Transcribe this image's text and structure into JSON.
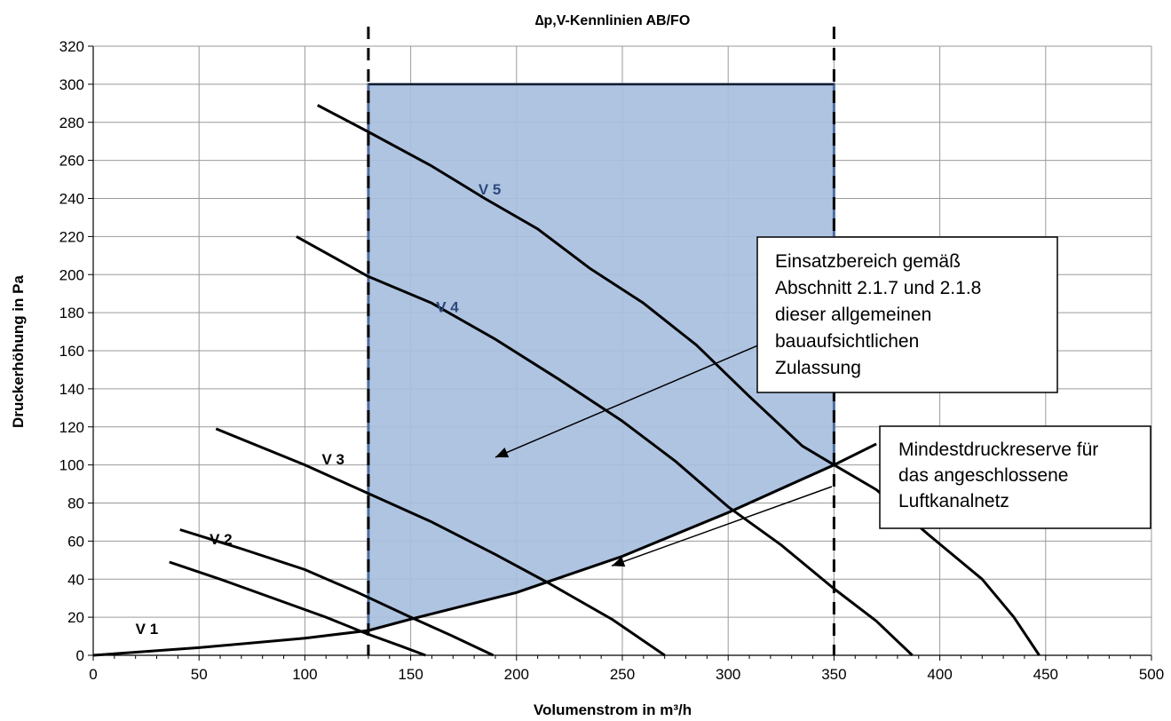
{
  "chart_data": {
    "type": "line",
    "title": "∆p,V-Kennlinien AB/FO",
    "xlabel": "Volumenstrom in m³/h",
    "ylabel": "Druckerhöhung in Pa",
    "xlim": [
      0,
      500
    ],
    "ylim": [
      0,
      320
    ],
    "x_ticks": [
      "0",
      "50",
      "100",
      "150",
      "200",
      "250",
      "300",
      "350",
      "400",
      "450",
      "500"
    ],
    "y_ticks": [
      "0",
      "20",
      "40",
      "60",
      "80",
      "100",
      "120",
      "140",
      "160",
      "180",
      "200",
      "220",
      "240",
      "260",
      "280",
      "300",
      "320"
    ],
    "grid": true,
    "series": [
      {
        "name": "V 1",
        "label_at": [
          20,
          14
        ],
        "label_color": "#000000",
        "points": [
          [
            36,
            49
          ],
          [
            60,
            40
          ],
          [
            90,
            28
          ],
          [
            110,
            20
          ],
          [
            130,
            11
          ],
          [
            145,
            5
          ],
          [
            157,
            0
          ]
        ]
      },
      {
        "name": "V 2",
        "label_at": [
          55,
          61
        ],
        "label_color": "#000000",
        "points": [
          [
            41,
            66
          ],
          [
            70,
            56
          ],
          [
            100,
            45
          ],
          [
            125,
            33
          ],
          [
            150,
            20
          ],
          [
            170,
            10
          ],
          [
            189,
            0
          ]
        ]
      },
      {
        "name": "V 3",
        "label_at": [
          108,
          103
        ],
        "label_color": "#000000",
        "points": [
          [
            58,
            119
          ],
          [
            100,
            100
          ],
          [
            130,
            85
          ],
          [
            160,
            70
          ],
          [
            190,
            53
          ],
          [
            215,
            38
          ],
          [
            245,
            19
          ],
          [
            270,
            0
          ]
        ]
      },
      {
        "name": "V 4",
        "label_at": [
          162,
          183
        ],
        "label_color": "#2e4a7a",
        "points": [
          [
            96,
            220
          ],
          [
            130,
            199
          ],
          [
            160,
            185
          ],
          [
            190,
            166
          ],
          [
            220,
            145
          ],
          [
            250,
            123
          ],
          [
            275,
            102
          ],
          [
            300,
            78
          ],
          [
            325,
            58
          ],
          [
            350,
            35
          ],
          [
            370,
            18
          ],
          [
            387,
            0
          ]
        ]
      },
      {
        "name": "V 5",
        "label_at": [
          182,
          245
        ],
        "label_color": "#2e4a7a",
        "points": [
          [
            106,
            289
          ],
          [
            130,
            275
          ],
          [
            160,
            257
          ],
          [
            185,
            240
          ],
          [
            210,
            224
          ],
          [
            235,
            203
          ],
          [
            260,
            185
          ],
          [
            285,
            163
          ],
          [
            310,
            136
          ],
          [
            335,
            110
          ],
          [
            350,
            100
          ],
          [
            370,
            87
          ],
          [
            395,
            63
          ],
          [
            420,
            40
          ],
          [
            435,
            20
          ],
          [
            447,
            0
          ]
        ]
      }
    ],
    "anlagenkennlinie": {
      "points": [
        [
          0,
          0
        ],
        [
          50,
          4
        ],
        [
          100,
          9
        ],
        [
          130,
          13
        ],
        [
          150,
          19
        ],
        [
          200,
          33
        ],
        [
          250,
          52
        ],
        [
          300,
          75
        ],
        [
          350,
          100
        ],
        [
          370,
          111
        ]
      ]
    },
    "operating_area": {
      "x_min": 130,
      "x_max": 350,
      "y_top": 300,
      "fill": "#a8bfde",
      "stroke": "#4e6d9c",
      "lower_boundary": [
        [
          130,
          13
        ],
        [
          150,
          19
        ],
        [
          200,
          33
        ],
        [
          250,
          52
        ],
        [
          300,
          75
        ],
        [
          350,
          100
        ]
      ]
    },
    "dashed_limits_x": [
      130,
      350
    ],
    "annotations": [
      {
        "text_lines": [
          "Einsatzbereich gemäß",
          "Abschnitt 2.1.7 und 2.1.8",
          "dieser allgemeinen",
          "bauaufsichtlichen",
          "Zulassung"
        ],
        "arrow_to": [
          190,
          104
        ]
      },
      {
        "text_lines": [
          "Mindestdruckreserve für",
          "das angeschlossene",
          "Luftkanalnetz"
        ],
        "arrow_to": [
          245,
          47
        ]
      }
    ]
  }
}
